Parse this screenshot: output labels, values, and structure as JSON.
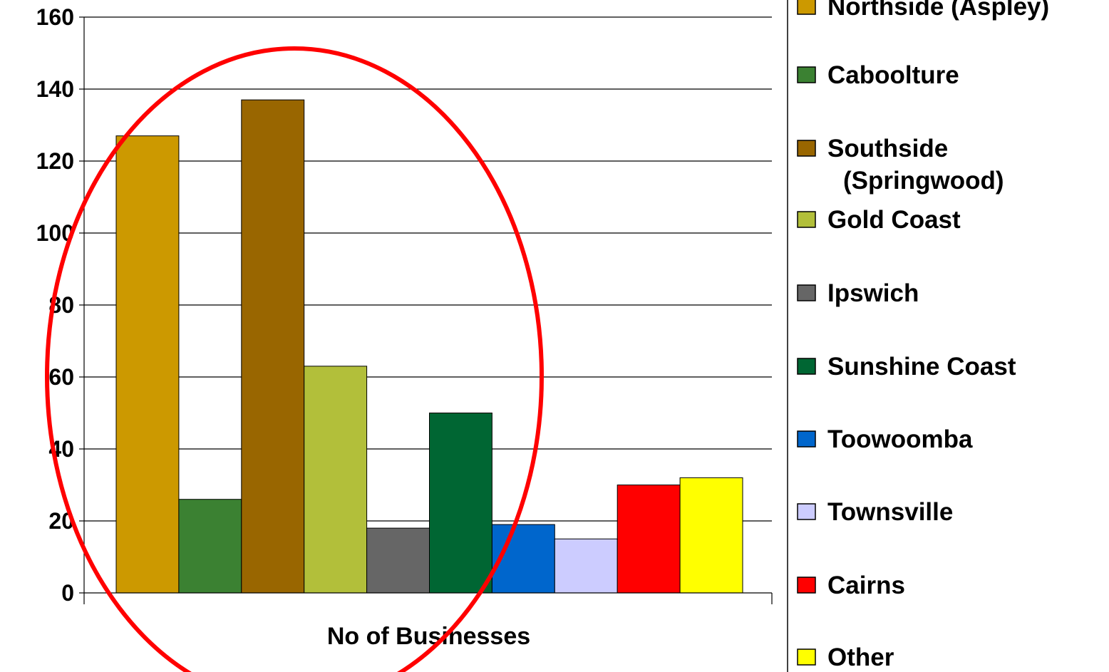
{
  "chart_data": {
    "type": "bar",
    "categories": [
      "No of Businesses"
    ],
    "series": [
      {
        "name": "Northside (Aspley)",
        "values": [
          127
        ],
        "color": "#CC9900"
      },
      {
        "name": "Caboolture",
        "values": [
          26
        ],
        "color": "#3B8132"
      },
      {
        "name": "Southside (Springwood)",
        "values": [
          137
        ],
        "color": "#996600"
      },
      {
        "name": "Gold Coast",
        "values": [
          63
        ],
        "color": "#B2BF3A"
      },
      {
        "name": "Ipswich",
        "values": [
          18
        ],
        "color": "#666666"
      },
      {
        "name": "Sunshine Coast",
        "values": [
          50
        ],
        "color": "#006633"
      },
      {
        "name": "Toowoomba",
        "values": [
          19
        ],
        "color": "#0066CC"
      },
      {
        "name": "Townsville",
        "values": [
          15
        ],
        "color": "#CCCCFF"
      },
      {
        "name": "Cairns",
        "values": [
          30
        ],
        "color": "#FF0000"
      },
      {
        "name": "Other",
        "values": [
          32
        ],
        "color": "#FFFF00"
      }
    ],
    "ylim": [
      0,
      160
    ],
    "yticks": [
      "0",
      "20",
      "40",
      "60",
      "80",
      "100",
      "120",
      "140",
      "160"
    ],
    "grid": true,
    "legend_position": "right",
    "annotation": {
      "type": "ellipse",
      "color": "#FF0000"
    }
  }
}
